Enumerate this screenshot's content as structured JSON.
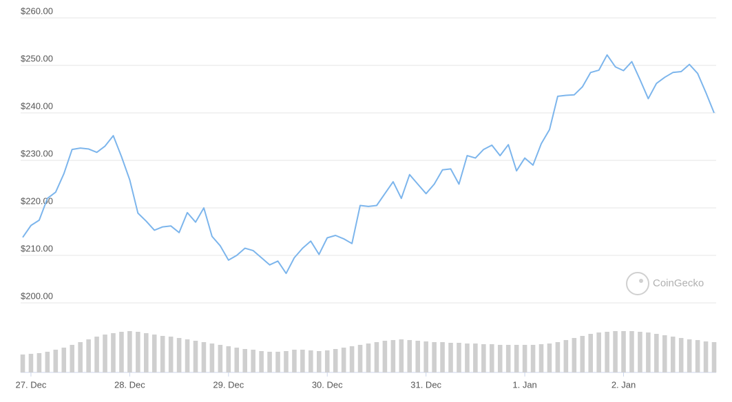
{
  "chart_data": {
    "type": "line",
    "color": "#7cb5ec",
    "watermark": "CoinGecko",
    "ylim": [
      200,
      260
    ],
    "yticks": [
      {
        "value": 200,
        "label": "$200.00"
      },
      {
        "value": 210,
        "label": "$210.00"
      },
      {
        "value": 220,
        "label": "$220.00"
      },
      {
        "value": 230,
        "label": "$230.00"
      },
      {
        "value": 240,
        "label": "$240.00"
      },
      {
        "value": 250,
        "label": "$250.00"
      },
      {
        "value": 260,
        "label": "$260.00"
      }
    ],
    "grid": true,
    "categories": [
      null,
      "27. Dec",
      null,
      null,
      null,
      null,
      null,
      null,
      null,
      null,
      null,
      null,
      null,
      "28. Dec",
      null,
      null,
      null,
      null,
      null,
      null,
      null,
      null,
      null,
      null,
      null,
      "29. Dec",
      null,
      null,
      null,
      null,
      null,
      null,
      null,
      null,
      null,
      null,
      null,
      "30. Dec",
      null,
      null,
      null,
      null,
      null,
      null,
      null,
      null,
      null,
      null,
      null,
      "31. Dec",
      null,
      null,
      null,
      null,
      null,
      null,
      null,
      null,
      null,
      null,
      null,
      "1. Jan",
      null,
      null,
      null,
      null,
      null,
      null,
      null,
      null,
      null,
      null,
      null,
      "2. Jan",
      null,
      null,
      null,
      null,
      null,
      null,
      null,
      null,
      null,
      null,
      null
    ],
    "values": [
      213.8,
      216.3,
      217.4,
      222,
      223.3,
      227.2,
      232.3,
      232.6,
      232.4,
      231.7,
      233,
      235.2,
      230.8,
      225.9,
      218.9,
      217.2,
      215.3,
      216,
      216.2,
      214.8,
      219,
      217,
      220,
      214,
      212,
      209,
      210,
      211.5,
      211,
      209.5,
      208,
      208.8,
      206.2,
      209.5,
      211.5,
      213,
      210.2,
      213.7,
      214.2,
      213.5,
      212.5,
      220.5,
      220.3,
      220.5,
      223,
      225.5,
      222,
      227,
      225,
      223,
      225,
      228,
      228.2,
      225,
      231,
      230.5,
      232.3,
      233.2,
      231,
      233.3,
      227.8,
      230.5,
      229,
      233.5,
      236.5,
      243.5,
      243.7,
      243.8,
      245.5,
      248.5,
      249,
      252.2,
      249.7,
      248.9,
      250.8,
      247,
      243,
      246.2,
      247.5,
      248.5,
      248.7,
      250.2,
      248.3,
      244.3,
      240
    ],
    "volume": {
      "color": "#cfcfcf",
      "values": [
        26,
        27,
        28,
        30,
        33,
        36,
        40,
        44,
        48,
        52,
        55,
        57,
        59,
        60,
        59,
        57,
        55,
        53,
        52,
        50,
        48,
        46,
        44,
        42,
        40,
        38,
        36,
        34,
        33,
        31,
        30,
        30,
        31,
        33,
        33,
        32,
        31,
        32,
        34,
        36,
        38,
        40,
        42,
        44,
        46,
        47,
        48,
        47,
        46,
        45,
        44,
        44,
        43,
        43,
        42,
        42,
        41,
        41,
        40,
        40,
        40,
        40,
        40,
        41,
        42,
        44,
        47,
        50,
        53,
        56,
        58,
        59,
        60,
        60,
        60,
        59,
        58,
        56,
        54,
        52,
        50,
        48,
        47,
        45,
        44
      ]
    }
  }
}
